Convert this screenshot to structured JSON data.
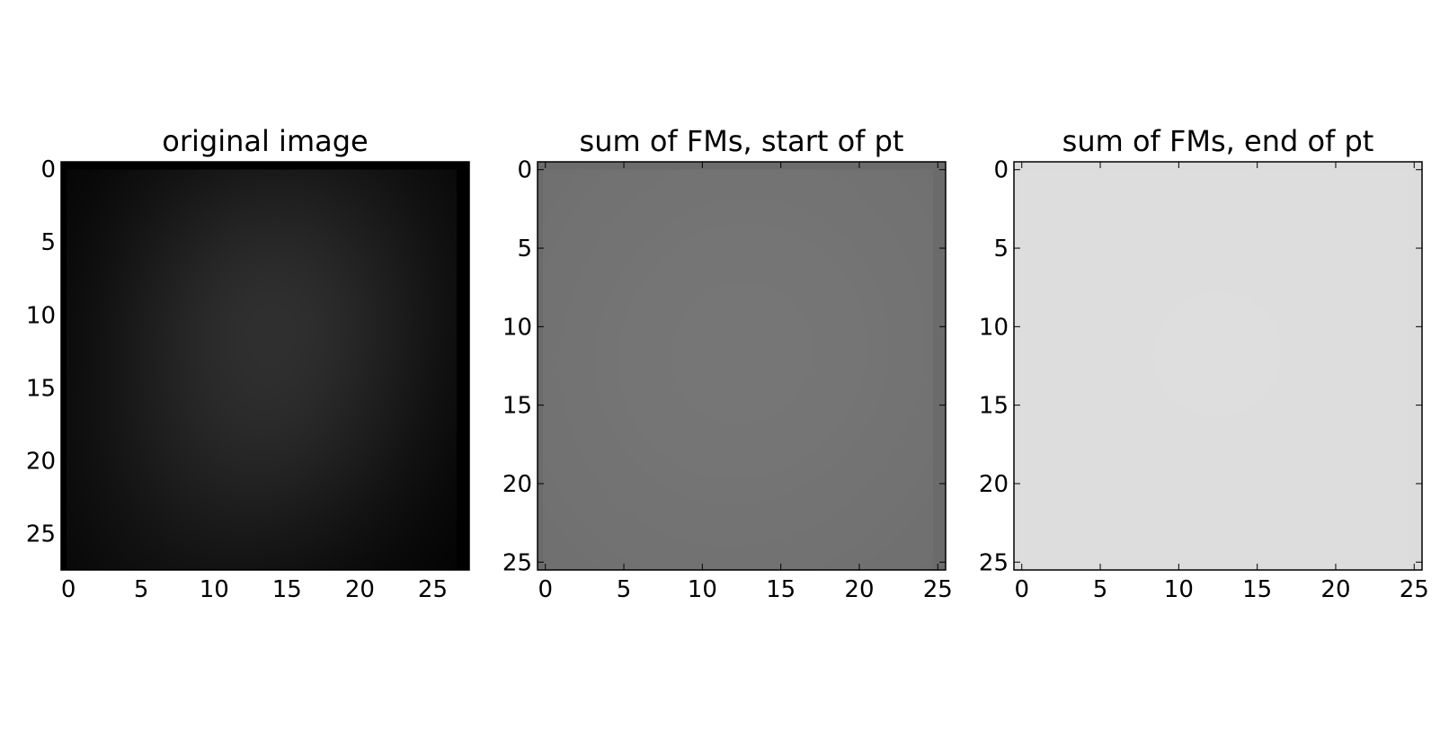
{
  "chart_data": [
    {
      "type": "heatmap",
      "title": "original image",
      "colormap": "gray",
      "background_color": "#000000",
      "stroke_color": "#ffffff",
      "blur": 0.45,
      "xlim": [
        -0.5,
        27.5
      ],
      "ylim": [
        27.5,
        -0.5
      ],
      "xticks": [
        0,
        5,
        10,
        15,
        20,
        25
      ],
      "yticks": [
        0,
        5,
        10,
        15,
        20,
        25
      ],
      "xtick_labels": [
        "0",
        "5",
        "10",
        "15",
        "20",
        "25"
      ],
      "ytick_labels": [
        "0",
        "5",
        "10",
        "15",
        "20",
        "25"
      ],
      "tick_marks_visible": false
    },
    {
      "type": "heatmap",
      "title": "sum of FMs, start of pt",
      "colormap": "gray",
      "background_color": "#6b6b6b",
      "stroke_color": "#f2f2f2",
      "blur": 0.75,
      "xlim": [
        -0.5,
        25.5
      ],
      "ylim": [
        25.5,
        -0.5
      ],
      "xticks": [
        0,
        5,
        10,
        15,
        20,
        25
      ],
      "yticks": [
        0,
        5,
        10,
        15,
        20,
        25
      ],
      "xtick_labels": [
        "0",
        "5",
        "10",
        "15",
        "20",
        "25"
      ],
      "ytick_labels": [
        "0",
        "5",
        "10",
        "15",
        "20",
        "25"
      ],
      "tick_marks_visible": true
    },
    {
      "type": "heatmap",
      "title": "sum of FMs, end of pt",
      "colormap": "gray",
      "background_color": "#dcdcdc",
      "stroke_color": "#f5f5f5",
      "blur": 0.9,
      "xlim": [
        -0.5,
        25.5
      ],
      "ylim": [
        25.5,
        -0.5
      ],
      "xticks": [
        0,
        5,
        10,
        15,
        20,
        25
      ],
      "yticks": [
        0,
        5,
        10,
        15,
        20,
        25
      ],
      "xtick_labels": [
        "0",
        "5",
        "10",
        "15",
        "20",
        "25"
      ],
      "ytick_labels": [
        "0",
        "5",
        "10",
        "15",
        "20",
        "25"
      ],
      "tick_marks_visible": true
    }
  ]
}
